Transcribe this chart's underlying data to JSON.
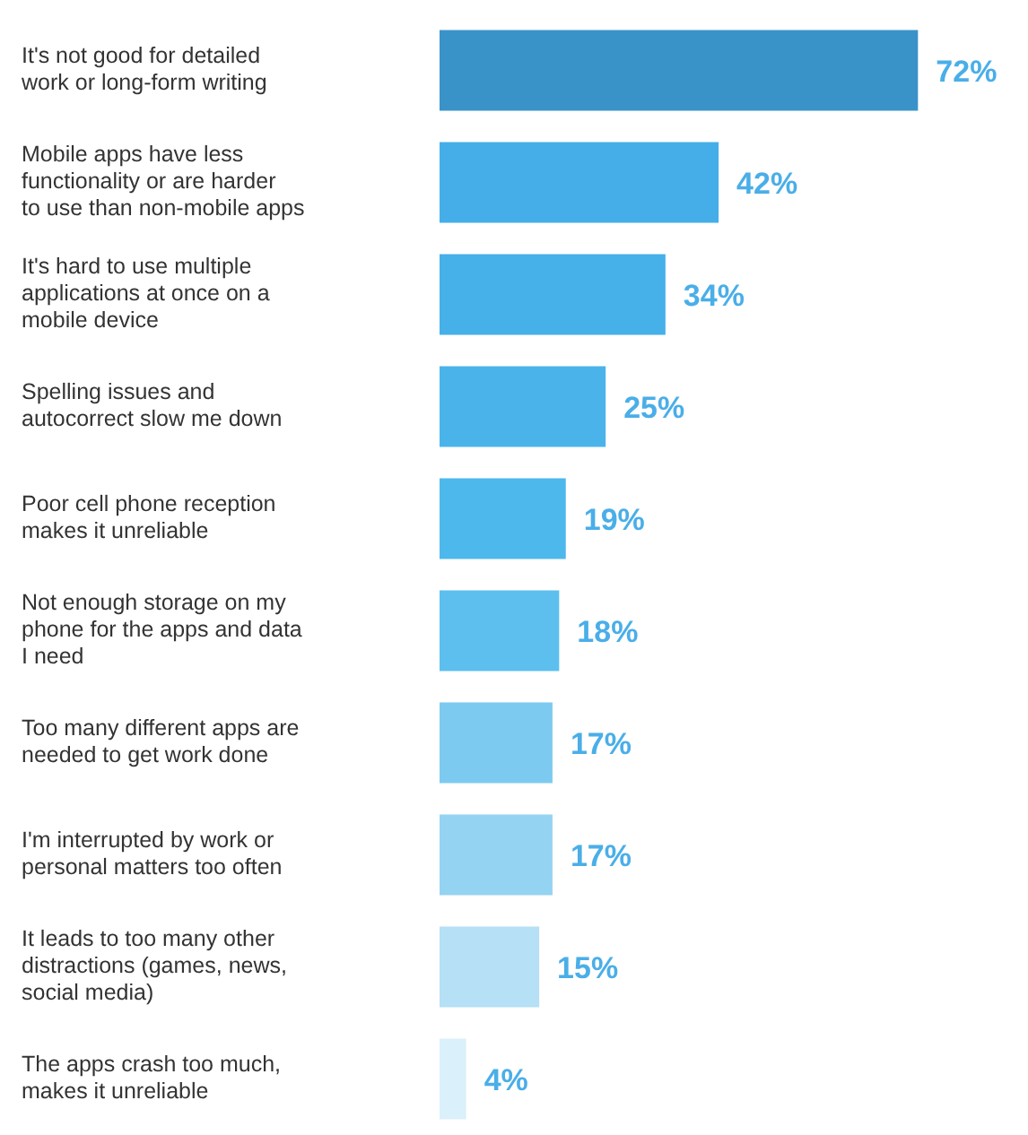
{
  "chart_data": {
    "type": "bar",
    "orientation": "horizontal",
    "value_labels": [
      "72%",
      "42%",
      "34%",
      "25%",
      "19%",
      "18%",
      "17%",
      "17%",
      "15%",
      "4%"
    ],
    "categories": [
      "It's not good for detailed work or long-form writing",
      "Mobile apps have less functionality or are harder to use than non-mobile apps",
      "It's hard to use multiple applications at once on a mobile device",
      "Spelling issues and autocorrect slow me down",
      "Poor cell phone reception makes it unreliable",
      "Not enough storage on my phone for the apps and data I need",
      "Too many different apps are needed to get work done",
      "I'm interrupted by work or personal matters too often",
      "It leads to too many other distractions (games, news, social media)",
      "The apps crash too much, makes it unreliable"
    ],
    "values": [
      72,
      42,
      34,
      25,
      19,
      18,
      17,
      17,
      15,
      4
    ],
    "colors": [
      "#3a93c8",
      "#45aee8",
      "#46b0e9",
      "#4ab4ea",
      "#4db8ec",
      "#5cbfee",
      "#7dcaf0",
      "#95d3f2",
      "#b5e0f6",
      "#daf0fb"
    ]
  }
}
